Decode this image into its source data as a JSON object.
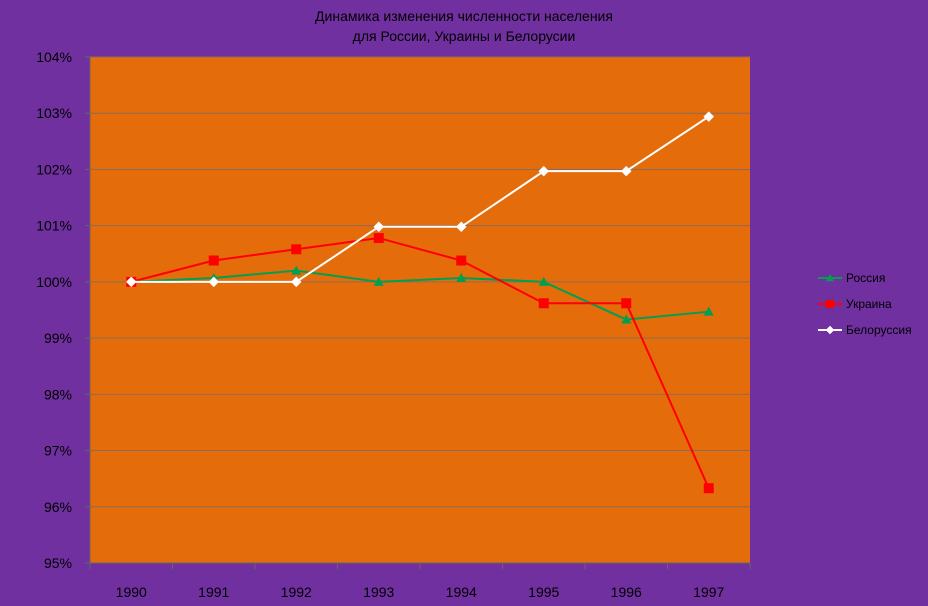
{
  "title": {
    "line1": "Динамика изменения  численности населения",
    "line2": "для России, Украины и Белорусии"
  },
  "colors": {
    "background": "#7030a0",
    "plot_area": "#e46c0a",
    "gridline": "#8b6b5a"
  },
  "chart_data": {
    "type": "line",
    "title": "Динамика изменения  численности населения для России, Украины и Белорусии",
    "xlabel": "",
    "ylabel": "",
    "x": [
      "1990",
      "1991",
      "1992",
      "1993",
      "1994",
      "1995",
      "1996",
      "1997"
    ],
    "ylim": [
      95,
      104
    ],
    "yticks": [
      "95%",
      "96%",
      "97%",
      "98%",
      "99%",
      "100%",
      "101%",
      "102%",
      "103%",
      "104%"
    ],
    "grid": true,
    "legend_position": "right",
    "series": [
      {
        "name": "Россия",
        "color": "#00a050",
        "marker": "triangle",
        "values": [
          100.0,
          100.07,
          100.2,
          100.0,
          100.07,
          100.0,
          99.33,
          99.47
        ]
      },
      {
        "name": "Украина",
        "color": "#ff0000",
        "marker": "square",
        "values": [
          100.0,
          100.38,
          100.58,
          100.78,
          100.38,
          99.62,
          99.62,
          96.33
        ]
      },
      {
        "name": "Белоруссия",
        "color": "#ffffff",
        "marker": "diamond",
        "values": [
          100.0,
          100.0,
          100.0,
          100.98,
          100.98,
          101.97,
          101.97,
          102.94
        ]
      }
    ]
  }
}
